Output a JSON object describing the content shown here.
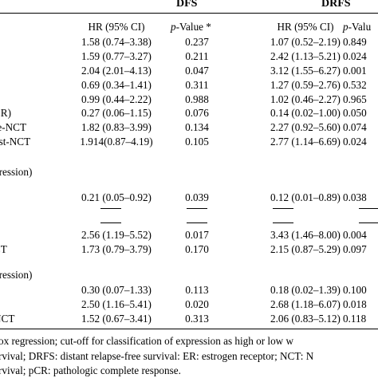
{
  "headers": {
    "group1": "DFS",
    "group2": "DRFS",
    "hr": "HR (95% CI)",
    "pvalue_prefix": "p",
    "pvalue_suffix": "-Value *",
    "pvalue2": "-Valu"
  },
  "sections": [
    {
      "title": "",
      "rows": [
        {
          "label": "",
          "dfs_hr": "1.58 (0.74–3.38)",
          "dfs_p": "0.237",
          "drfs_hr": "1.07 (0.52–2.19)",
          "drfs_p": "0.849"
        },
        {
          "label": "",
          "dfs_hr": "1.59 (0.77–3.27)",
          "dfs_p": "0.211",
          "drfs_hr": "2.42 (1.13–5.21)",
          "drfs_p": "0.024"
        },
        {
          "label": "",
          "dfs_hr": "2.04 (2.01–4.13)",
          "dfs_p": "0.047",
          "drfs_hr": "3.12 (1.55‒6.27)",
          "drfs_p": "0.001"
        },
        {
          "label": "",
          "dfs_hr": "0.69 (0.34–1.41)",
          "dfs_p": "0.311",
          "drfs_hr": "1.27 (0.59–2.76)",
          "drfs_p": "0.532"
        },
        {
          "label": "",
          "dfs_hr": "0.99 (0.44–2.22)",
          "dfs_p": "0.988",
          "drfs_hr": "1.02 (0.46–2.27)",
          "drfs_p": "0.965"
        },
        {
          "label": "CR)",
          "dfs_hr": "0.27 (0.06–1.15)",
          "dfs_p": "0.076",
          "drfs_hr": "0.14 (0.02–1.00)",
          "drfs_p": "0.050"
        },
        {
          "label": "re-NCT",
          "dfs_hr": "1.82 (0.83–3.99)",
          "dfs_p": "0.134",
          "drfs_hr": "2.27 (0.92–5.60)",
          "drfs_p": "0.074"
        },
        {
          "label": "ost-NCT",
          "dfs_hr": "1.914(0.87–4.19)",
          "dfs_p": "0.105",
          "drfs_hr": "2.77 (1.14–6.69)",
          "drfs_p": "0.024"
        }
      ]
    },
    {
      "title": "pression)",
      "rows": [
        {
          "label": "",
          "dfs_hr": "0.21 (0.05–0.92)",
          "dfs_p": "0.039",
          "drfs_hr": "0.12 (0.01–0.89)",
          "drfs_p": "0.038"
        },
        {
          "label": "",
          "dfs_hr": "——",
          "dfs_p": "——",
          "drfs_hr": "——",
          "drfs_p": "——"
        },
        {
          "label": "",
          "dfs_hr": "——",
          "dfs_p": "——",
          "drfs_hr": "——",
          "drfs_p": "——"
        },
        {
          "label": "",
          "dfs_hr": "2.56 (1.19–5.52)",
          "dfs_p": "0.017",
          "drfs_hr": "3.43 (1.46–8.00)",
          "drfs_p": "0.004"
        },
        {
          "label": "CT",
          "dfs_hr": "1.73 (0.79–3.79)",
          "dfs_p": "0.170",
          "drfs_hr": "2.15 (0.87–5.29)",
          "drfs_p": "0.097"
        }
      ]
    },
    {
      "title": "pression)",
      "rows": [
        {
          "label": "",
          "dfs_hr": "0.30 (0.07–1.33)",
          "dfs_p": "0.113",
          "drfs_hr": "0.18 (0.02–1.39)",
          "drfs_p": "0.100"
        },
        {
          "label": "",
          "dfs_hr": "2.50 (1.16–5.41)",
          "dfs_p": "0.020",
          "drfs_hr": "2.68 (1.18–6.07)",
          "drfs_p": "0.018"
        },
        {
          "label": "NCT",
          "dfs_hr": "1.52 (0.67–3.41)",
          "dfs_p": "0.313",
          "drfs_hr": "2.06 (0.83–5.12)",
          "drfs_p": "0.118"
        }
      ]
    }
  ],
  "footnotes": [
    "ox regression; cut-off for classification of expression as high or low w",
    "rvival; DRFS: distant relapse-free survival: ER: estrogen receptor; NCT: N",
    "rvival; pCR: pathologic complete response."
  ]
}
